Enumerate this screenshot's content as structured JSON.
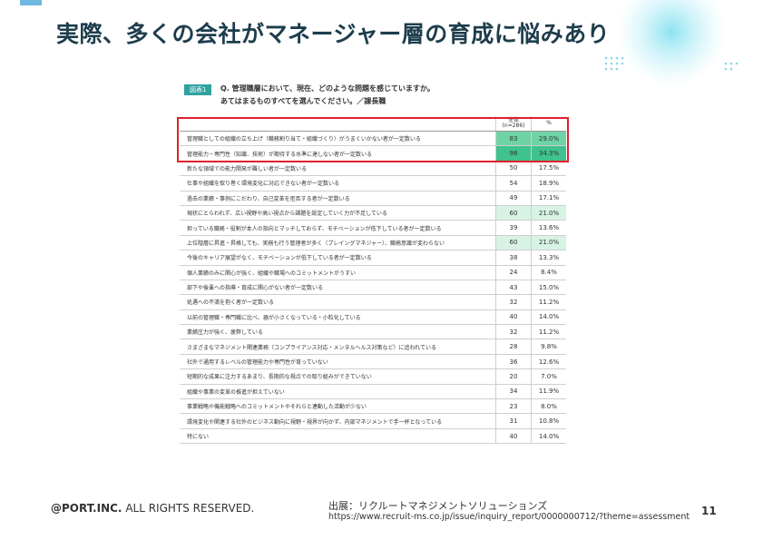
{
  "title": "実際、多くの会社がマネージャー層の育成に悩みあり",
  "figure": {
    "label": "図表1",
    "question": [
      "Q. 管理職層において、現在、どのような問題を感じていますか。",
      "あてはまるものすべてを選んでください。／課長職"
    ],
    "header": [
      "全体",
      "(n=286)",
      "%"
    ],
    "rows": [
      {
        "label": "管理職としての組織の立ち上げ（職務割り当て・組織づくり）がうまくいかない者が一定数いる",
        "count": 83,
        "percent": "29.0%",
        "fill": "#6ed3a6"
      },
      {
        "label": "管理能力・専門性（知識、技術）が期待する水準に達しない者が一定数いる",
        "count": 98,
        "percent": "34.3%",
        "fill": "#3fc28e"
      },
      {
        "label": "新たな領域での能力開発が難しい者が一定数いる",
        "count": 50,
        "percent": "17.5%"
      },
      {
        "label": "仕事や組織を取り巻く環境変化に対応できない者が一定数いる",
        "count": 54,
        "percent": "18.9%"
      },
      {
        "label": "過去の業績・事例にこだわり、自己変革を拒否する者が一定数いる",
        "count": 49,
        "percent": "17.1%"
      },
      {
        "label": "現状にとらわれず、広い視野や高い視点から課題を設定していく力が不足している",
        "count": 60,
        "percent": "21.0%",
        "fill": "#d6f3e4"
      },
      {
        "label": "担っている職務・役割が本人の指向とマッチしておらず、モチベーションが低下している者が一定数いる",
        "count": 39,
        "percent": "13.6%"
      },
      {
        "label": "上位階層に昇進・昇格しても、実務も行う管理者が多く（プレイングマネジャー）、職務意識が変わらない",
        "count": 60,
        "percent": "21.0%",
        "fill": "#d6f3e4"
      },
      {
        "label": "今後のキャリア展望がなく、モチベーションが低下している者が一定数いる",
        "count": 38,
        "percent": "13.3%"
      },
      {
        "label": "個人業績のみに関心が強く、組織や職場へのコミットメントがうすい",
        "count": 24,
        "percent": "8.4%"
      },
      {
        "label": "部下や後輩への指導・育成に関心がない者が一定数いる",
        "count": 43,
        "percent": "15.0%"
      },
      {
        "label": "処遇への不満を抱く者が一定数いる",
        "count": 32,
        "percent": "11.2%"
      },
      {
        "label": "以前の管理職・専門職に比べ、器が小さくなっている・小粒化している",
        "count": 40,
        "percent": "14.0%"
      },
      {
        "label": "業績圧力が強く、疲弊している",
        "count": 32,
        "percent": "11.2%"
      },
      {
        "label": "さまざまなマネジメント関連業務（コンプライアンス対応・メンタルヘルス対策など）に追われている",
        "count": 28,
        "percent": "9.8%"
      },
      {
        "label": "社外で通用するレベルの管理能力や専門性が育っていない",
        "count": 36,
        "percent": "12.6%"
      },
      {
        "label": "短期的な成果に注力するあまり、長期的な視点での取り組みができていない",
        "count": 20,
        "percent": "7.0%"
      },
      {
        "label": "組織や事業の変革の推進が担えていない",
        "count": 34,
        "percent": "11.9%"
      },
      {
        "label": "事業戦略や機能戦略へのコミットメントやそれらと連動した活動が少ない",
        "count": 23,
        "percent": "8.0%"
      },
      {
        "label": "環境変化や関連する社外のビジネス動向に視野・視界が向かず、内部マネジメントで手一杯となっている",
        "count": 31,
        "percent": "10.8%"
      },
      {
        "label": "特にない",
        "count": 40,
        "percent": "14.0%"
      }
    ]
  },
  "footer": {
    "company": "@PORT.INC.",
    "rights": "ALL RIGHTS RESERVED.",
    "source": "出展：リクルートマネジメントソリューションズ",
    "url": "https://www.recruit-ms.co.jp/issue/inquiry_report/0000000712/?theme=assessment",
    "page": "11"
  }
}
